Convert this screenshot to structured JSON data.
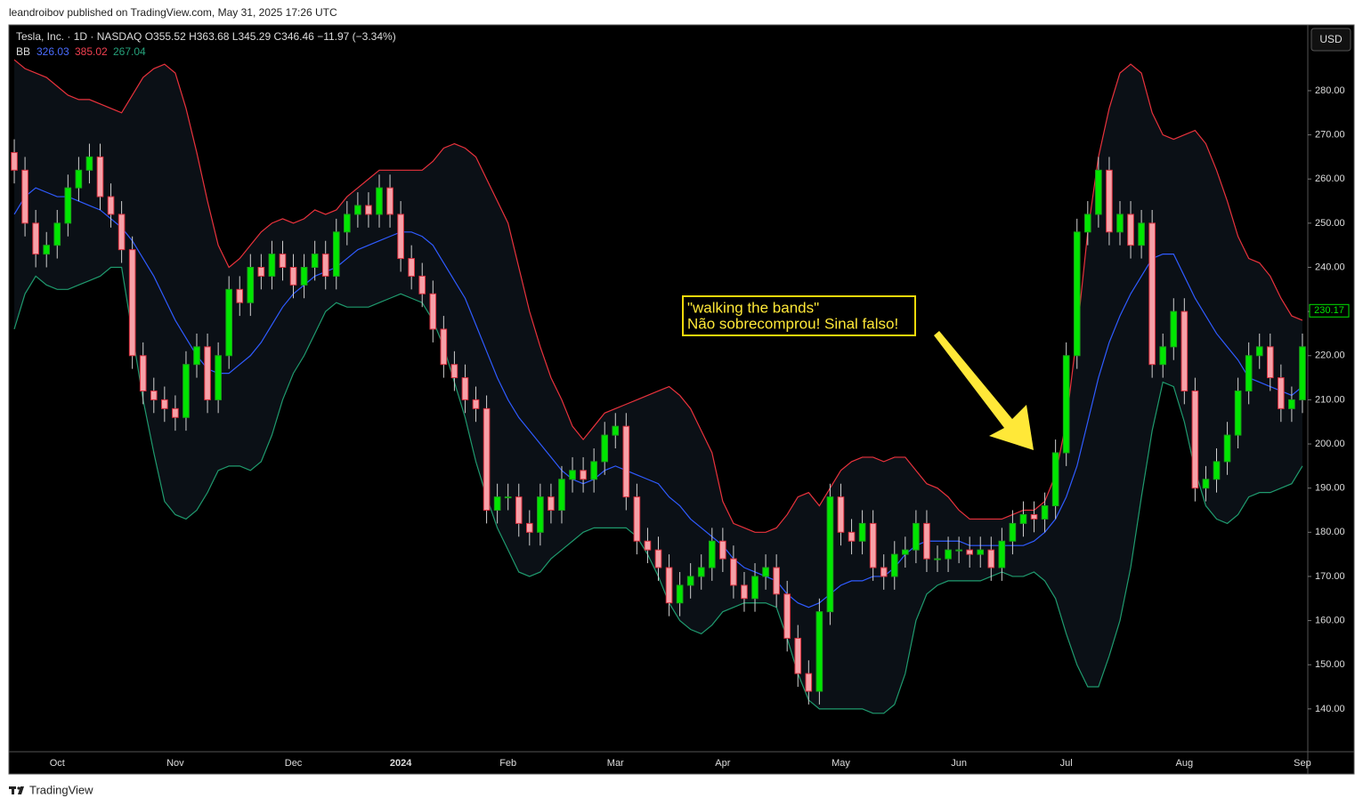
{
  "header": {
    "publisher": "leandroibov published on TradingView.com, May 31, 2025 17:26 UTC",
    "brand": "TradingView"
  },
  "chart_data": {
    "type": "candlestick",
    "legend_line": "Tesla, Inc. · 1D · NASDAQ  O355.52  H363.68  L345.29  C346.46  −11.97 (−3.34%)",
    "indicator_label": "BB",
    "indicator_values": [
      326.03,
      385.02,
      267.04
    ],
    "currency": "USD",
    "annotation": [
      "\"walking the bands\"",
      "Não sobrecomprou! Sinal falso!"
    ],
    "last_price": 230.17,
    "up_color": "#00e600",
    "down_color": "#f7a1a8",
    "ylim": [
      130.3,
      294.9
    ],
    "yticks": [
      {
        "value": 140,
        "label": "140.00"
      },
      {
        "value": 150,
        "label": "150.00"
      },
      {
        "value": 160,
        "label": "160.00"
      },
      {
        "value": 170,
        "label": "170.00"
      },
      {
        "value": 180,
        "label": "180.00"
      },
      {
        "value": 190,
        "label": "190.00"
      },
      {
        "value": 200,
        "label": "200.00"
      },
      {
        "value": 210,
        "label": "210.00"
      },
      {
        "value": 220,
        "label": "220.00"
      },
      {
        "value": 230,
        "label": "230.00"
      },
      {
        "value": 240,
        "label": "240.00"
      },
      {
        "value": 250,
        "label": "250.00"
      },
      {
        "value": 260,
        "label": "260.00"
      },
      {
        "value": 270,
        "label": "270.00"
      },
      {
        "value": 280,
        "label": "280.00"
      }
    ],
    "categories": [
      null,
      null,
      null,
      null,
      "Oct",
      null,
      null,
      null,
      null,
      null,
      null,
      null,
      null,
      null,
      null,
      "Nov",
      null,
      null,
      null,
      null,
      null,
      null,
      null,
      null,
      null,
      null,
      "Dec",
      null,
      null,
      null,
      null,
      null,
      null,
      null,
      null,
      null,
      "2024",
      null,
      null,
      null,
      null,
      null,
      null,
      null,
      null,
      null,
      "Feb",
      null,
      null,
      null,
      null,
      null,
      null,
      null,
      null,
      null,
      "Mar",
      null,
      null,
      null,
      null,
      null,
      null,
      null,
      null,
      null,
      "Apr",
      null,
      null,
      null,
      null,
      null,
      null,
      null,
      null,
      null,
      null,
      "May",
      null,
      null,
      null,
      null,
      null,
      null,
      null,
      null,
      null,
      null,
      "Jun",
      null,
      null,
      null,
      null,
      null,
      null,
      null,
      null,
      null,
      "Jul",
      null,
      null,
      null,
      null,
      null,
      null,
      null,
      null,
      null,
      null,
      "Aug",
      null,
      null,
      null,
      null,
      null,
      null,
      null,
      null,
      null,
      null,
      "Sep"
    ],
    "open": [
      266,
      262,
      250,
      243,
      245,
      250,
      258,
      262,
      265,
      256,
      252,
      244,
      220,
      212,
      210,
      208,
      206,
      218,
      222,
      210,
      220,
      235,
      232,
      240,
      238,
      243,
      240,
      236,
      240,
      243,
      238,
      248,
      252,
      254,
      252,
      258,
      252,
      242,
      238,
      234,
      226,
      218,
      215,
      210,
      208,
      185,
      188,
      188,
      182,
      180,
      188,
      185,
      192,
      194,
      192,
      196,
      202,
      204,
      188,
      178,
      176,
      172,
      164,
      168,
      170,
      172,
      178,
      174,
      168,
      165,
      170,
      172,
      166,
      156,
      148,
      144,
      162,
      188,
      180,
      178,
      182,
      172,
      170,
      175,
      176,
      182,
      174,
      174,
      176,
      176,
      175,
      176,
      172,
      178,
      182,
      184,
      183,
      186,
      198,
      220,
      248,
      252,
      262,
      248,
      252,
      245,
      250,
      218,
      222,
      230,
      212,
      190,
      192,
      196,
      202,
      212,
      220,
      222,
      215,
      208,
      210
    ],
    "high": [
      269,
      265,
      253,
      248,
      253,
      261,
      265,
      268,
      268,
      259,
      255,
      247,
      223,
      215,
      213,
      211,
      221,
      225,
      225,
      223,
      238,
      238,
      243,
      243,
      246,
      246,
      243,
      243,
      246,
      246,
      251,
      255,
      257,
      257,
      261,
      261,
      255,
      245,
      241,
      237,
      229,
      221,
      218,
      213,
      211,
      191,
      191,
      191,
      185,
      191,
      191,
      195,
      197,
      197,
      199,
      205,
      207,
      207,
      191,
      181,
      179,
      175,
      171,
      173,
      175,
      181,
      181,
      177,
      171,
      173,
      175,
      175,
      169,
      159,
      151,
      165,
      191,
      191,
      183,
      185,
      185,
      175,
      178,
      179,
      185,
      185,
      177,
      179,
      179,
      179,
      179,
      179,
      181,
      185,
      187,
      187,
      189,
      201,
      223,
      251,
      255,
      265,
      265,
      255,
      255,
      253,
      253,
      225,
      233,
      233,
      215,
      195,
      199,
      205,
      215,
      223,
      225,
      225,
      218,
      213,
      225
    ],
    "low": [
      259,
      247,
      240,
      240,
      242,
      247,
      255,
      259,
      253,
      249,
      241,
      217,
      209,
      207,
      205,
      203,
      203,
      215,
      207,
      207,
      217,
      229,
      229,
      235,
      235,
      237,
      233,
      233,
      237,
      235,
      235,
      245,
      249,
      249,
      249,
      249,
      239,
      235,
      231,
      223,
      215,
      212,
      207,
      205,
      182,
      182,
      185,
      179,
      177,
      177,
      182,
      182,
      189,
      189,
      189,
      193,
      199,
      185,
      175,
      173,
      169,
      161,
      161,
      165,
      167,
      169,
      171,
      165,
      162,
      162,
      167,
      163,
      153,
      145,
      141,
      141,
      159,
      177,
      175,
      175,
      169,
      167,
      167,
      172,
      173,
      171,
      171,
      171,
      173,
      172,
      172,
      169,
      169,
      175,
      179,
      180,
      180,
      183,
      195,
      217,
      245,
      249,
      245,
      245,
      242,
      242,
      215,
      215,
      219,
      209,
      187,
      187,
      189,
      193,
      199,
      209,
      217,
      212,
      205,
      205,
      207
    ],
    "close": [
      262,
      250,
      243,
      245,
      250,
      258,
      262,
      265,
      256,
      252,
      244,
      220,
      212,
      210,
      208,
      206,
      218,
      222,
      210,
      220,
      235,
      232,
      240,
      238,
      243,
      240,
      236,
      240,
      243,
      238,
      248,
      252,
      254,
      252,
      258,
      252,
      242,
      238,
      234,
      226,
      218,
      215,
      210,
      208,
      185,
      188,
      188,
      182,
      180,
      188,
      185,
      192,
      194,
      192,
      196,
      202,
      204,
      188,
      178,
      176,
      172,
      164,
      168,
      170,
      172,
      178,
      174,
      168,
      165,
      170,
      172,
      166,
      156,
      148,
      144,
      162,
      188,
      180,
      178,
      182,
      172,
      170,
      175,
      176,
      182,
      174,
      174,
      176,
      176,
      175,
      176,
      172,
      178,
      182,
      184,
      183,
      186,
      198,
      220,
      248,
      252,
      262,
      248,
      252,
      245,
      250,
      218,
      222,
      230,
      212,
      190,
      192,
      196,
      202,
      212,
      220,
      222,
      215,
      208,
      210,
      222
    ],
    "bands": [
      {
        "color": "#2f5bff",
        "values": [
          252,
          256,
          258,
          257,
          256,
          256,
          255,
          254,
          253,
          251,
          249,
          246,
          242,
          238,
          233,
          228,
          224,
          220,
          217,
          216,
          216,
          218,
          220,
          223,
          227,
          231,
          234,
          236,
          238,
          239,
          240,
          242,
          244,
          245,
          246,
          247,
          248,
          248,
          247,
          245,
          241,
          237,
          233,
          227,
          221,
          215,
          210,
          206,
          203,
          200,
          197,
          194,
          192,
          191,
          192,
          194,
          195,
          194,
          193,
          192,
          191,
          188,
          186,
          183,
          181,
          179,
          177,
          174,
          172,
          171,
          170,
          169,
          166,
          164,
          163,
          164,
          166,
          168,
          169,
          169,
          170,
          170,
          172,
          175,
          177,
          178,
          178,
          178,
          178,
          177,
          177,
          177,
          177,
          177,
          177,
          178,
          180,
          183,
          188,
          195,
          205,
          215,
          223,
          229,
          234,
          238,
          242,
          243,
          243,
          238,
          233,
          229,
          225,
          222,
          219,
          215,
          214,
          213,
          212,
          211,
          213
        ]
      },
      {
        "color": "#e8323c",
        "values": [
          287,
          285,
          284,
          283,
          281,
          279,
          278,
          278,
          277,
          276,
          275,
          279,
          283,
          285,
          286,
          284,
          276,
          266,
          255,
          245,
          240,
          242,
          245,
          248,
          250,
          251,
          250,
          251,
          253,
          252,
          253,
          256,
          258,
          260,
          262,
          262,
          262,
          262,
          262,
          264,
          267,
          268,
          267,
          265,
          260,
          255,
          250,
          240,
          230,
          222,
          215,
          210,
          204,
          201,
          204,
          207,
          208,
          209,
          210,
          211,
          212,
          213,
          211,
          208,
          203,
          198,
          187,
          182,
          181,
          180,
          180,
          181,
          184,
          188,
          189,
          186,
          190,
          194,
          196,
          197,
          197,
          196,
          197,
          197,
          194,
          191,
          190,
          188,
          185,
          183,
          183,
          183,
          183,
          184,
          185,
          185,
          187,
          193,
          205,
          225,
          248,
          265,
          276,
          284,
          286,
          284,
          275,
          270,
          269,
          270,
          271,
          268,
          262,
          255,
          247,
          242,
          241,
          238,
          233,
          229,
          228
        ]
      },
      {
        "color": "#1f9a6e",
        "values": [
          226,
          234,
          238,
          236,
          235,
          235,
          236,
          237,
          238,
          240,
          240,
          225,
          210,
          198,
          187,
          184,
          183,
          185,
          189,
          194,
          195,
          195,
          194,
          196,
          202,
          210,
          216,
          220,
          225,
          230,
          232,
          231,
          231,
          231,
          232,
          233,
          234,
          233,
          232,
          228,
          222,
          214,
          206,
          196,
          188,
          181,
          176,
          171,
          170,
          171,
          174,
          176,
          178,
          180,
          181,
          181,
          181,
          181,
          179,
          175,
          170,
          164,
          160,
          158,
          157,
          159,
          162,
          163,
          164,
          164,
          164,
          163,
          156,
          148,
          142,
          140,
          140,
          140,
          140,
          140,
          139,
          139,
          141,
          148,
          160,
          166,
          168,
          169,
          169,
          169,
          169,
          170,
          171,
          170,
          170,
          171,
          169,
          165,
          157,
          150,
          145,
          145,
          152,
          160,
          172,
          188,
          203,
          214,
          213,
          205,
          194,
          186,
          183,
          182,
          184,
          188,
          189,
          189,
          190,
          191,
          195
        ]
      }
    ]
  }
}
